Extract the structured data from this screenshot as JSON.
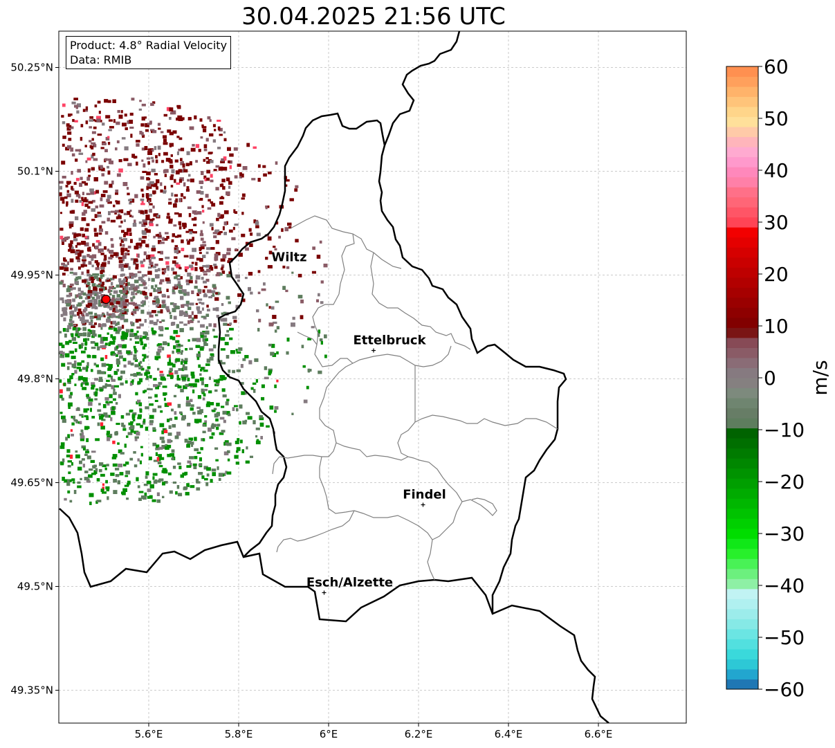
{
  "title": "30.04.2025 21:56 UTC",
  "info_box": {
    "product": "Product: 4.8° Radial Velocity",
    "data_source": "Data: RMIB"
  },
  "map": {
    "lon_range": [
      5.4,
      6.8
    ],
    "lat_range": [
      49.3,
      50.3
    ],
    "lat_ticks": [
      {
        "value": 49.35,
        "label": "49.35°N"
      },
      {
        "value": 49.5,
        "label": "49.5°N"
      },
      {
        "value": 49.65,
        "label": "49.65°N"
      },
      {
        "value": 49.8,
        "label": "49.8°N"
      },
      {
        "value": 49.95,
        "label": "49.95°N"
      },
      {
        "value": 50.1,
        "label": "50.1°N"
      },
      {
        "value": 50.25,
        "label": "50.25°N"
      }
    ],
    "lon_ticks": [
      {
        "value": 5.6,
        "label": "5.6°E"
      },
      {
        "value": 5.8,
        "label": "5.8°E"
      },
      {
        "value": 6.0,
        "label": "6°E"
      },
      {
        "value": 6.2,
        "label": "6.2°E"
      },
      {
        "value": 6.4,
        "label": "6.4°E"
      },
      {
        "value": 6.6,
        "label": "6.6°E"
      }
    ],
    "grid": true,
    "radar_site": {
      "lon": 5.505,
      "lat": 49.915,
      "color": "#ff0000"
    },
    "cities": [
      {
        "name": "Wiltz",
        "lon": 5.94,
        "lat": 49.97,
        "marker": false
      },
      {
        "name": "Ettelbruck",
        "lon": 6.1,
        "lat": 49.85,
        "marker": true
      },
      {
        "name": "Findel",
        "lon": 6.21,
        "lat": 49.627,
        "marker": true
      },
      {
        "name": "Esch/Alzette",
        "lon": 5.99,
        "lat": 49.5,
        "marker": true
      }
    ]
  },
  "colorbar": {
    "label": "m/s",
    "min": -60,
    "max": 60,
    "ticks": [
      {
        "value": 60,
        "label": "60"
      },
      {
        "value": 50,
        "label": "50"
      },
      {
        "value": 40,
        "label": "40"
      },
      {
        "value": 30,
        "label": "30"
      },
      {
        "value": 20,
        "label": "20"
      },
      {
        "value": 10,
        "label": "10"
      },
      {
        "value": 0,
        "label": "0"
      },
      {
        "value": -10,
        "label": "−10"
      },
      {
        "value": -20,
        "label": "−20"
      },
      {
        "value": -30,
        "label": "−30"
      },
      {
        "value": -40,
        "label": "−40"
      },
      {
        "value": -50,
        "label": "−50"
      },
      {
        "value": -60,
        "label": "−60"
      }
    ],
    "colors": [
      "#1f77b4",
      "#22a6cf",
      "#2dc8d6",
      "#3ad9db",
      "#52e0df",
      "#6be5e3",
      "#86e9e6",
      "#9ceceb",
      "#b0f0f0",
      "#c1f3f3",
      "#8ef0a5",
      "#6cf07e",
      "#49f256",
      "#28f02b",
      "#10e818",
      "#00dd00",
      "#00d000",
      "#00c300",
      "#00b700",
      "#00ab00",
      "#009f00",
      "#009300",
      "#008700",
      "#007b00",
      "#006f00",
      "#006300",
      "#5e7d5e",
      "#677d66",
      "#6f8570",
      "#7d8a7d",
      "#858080",
      "#867a80",
      "#8a6c76",
      "#8a5b66",
      "#874a56",
      "#7a1515",
      "#820000",
      "#8e0000",
      "#9a0000",
      "#a60000",
      "#b20000",
      "#be0000",
      "#ca0000",
      "#d60000",
      "#e40000",
      "#f20000",
      "#ff4455",
      "#ff5566",
      "#ff6677",
      "#ff7088",
      "#ff80a8",
      "#ff88bb",
      "#ff99cc",
      "#ffaad0",
      "#ffb5bb",
      "#ffcaa8",
      "#ffe09a",
      "#ffd58a",
      "#ffc47a",
      "#ffb36a",
      "#ffa05c",
      "#ff9050"
    ]
  },
  "velocity_colors": {
    "outbound_far": "#7a0000",
    "outbound_mid": "#8a5b66",
    "inbound_strong": "#008f00",
    "inbound_weak": "#5e7d5e",
    "near_zero": "#857a80"
  }
}
